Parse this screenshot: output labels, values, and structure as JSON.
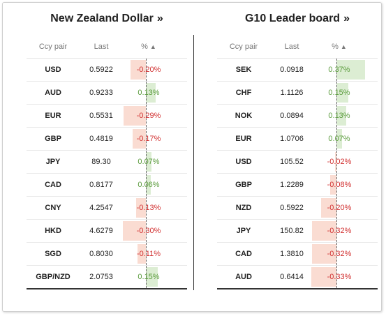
{
  "colors": {
    "positive": "#5a9b3c",
    "negative": "#d13030",
    "positive_bar": "#dcedd3",
    "negative_bar": "#fadcd2"
  },
  "left": {
    "title": "New Zealand Dollar",
    "title_suffix": "»",
    "headers": {
      "pair": "Ccy pair",
      "last": "Last",
      "pct": "%",
      "sort_icon": "▲"
    },
    "rows": [
      {
        "pair": "USD",
        "last": "0.5922",
        "pct": "-0.20%",
        "value": -0.2
      },
      {
        "pair": "AUD",
        "last": "0.9233",
        "pct": "0.13%",
        "value": 0.13
      },
      {
        "pair": "EUR",
        "last": "0.5531",
        "pct": "-0.29%",
        "value": -0.29
      },
      {
        "pair": "GBP",
        "last": "0.4819",
        "pct": "-0.17%",
        "value": -0.17
      },
      {
        "pair": "JPY",
        "last": "89.30",
        "pct": "0.07%",
        "value": 0.07
      },
      {
        "pair": "CAD",
        "last": "0.8177",
        "pct": "0.06%",
        "value": 0.06
      },
      {
        "pair": "CNY",
        "last": "4.2547",
        "pct": "-0.13%",
        "value": -0.13
      },
      {
        "pair": "HKD",
        "last": "4.6279",
        "pct": "-0.30%",
        "value": -0.3
      },
      {
        "pair": "SGD",
        "last": "0.8030",
        "pct": "-0.11%",
        "value": -0.11
      },
      {
        "pair": "GBP/NZD",
        "last": "2.0753",
        "pct": "0.15%",
        "value": 0.15
      }
    ]
  },
  "right": {
    "title": "G10 Leader board",
    "title_suffix": "»",
    "headers": {
      "pair": "Ccy pair",
      "last": "Last",
      "pct": "%",
      "sort_icon": "▲"
    },
    "rows": [
      {
        "pair": "SEK",
        "last": "0.0918",
        "pct": "0.37%",
        "value": 0.37
      },
      {
        "pair": "CHF",
        "last": "1.1126",
        "pct": "0.15%",
        "value": 0.15
      },
      {
        "pair": "NOK",
        "last": "0.0894",
        "pct": "0.13%",
        "value": 0.13
      },
      {
        "pair": "EUR",
        "last": "1.0706",
        "pct": "0.07%",
        "value": 0.07
      },
      {
        "pair": "USD",
        "last": "105.52",
        "pct": "-0.02%",
        "value": -0.02
      },
      {
        "pair": "GBP",
        "last": "1.2289",
        "pct": "-0.08%",
        "value": -0.08
      },
      {
        "pair": "NZD",
        "last": "0.5922",
        "pct": "-0.20%",
        "value": -0.2
      },
      {
        "pair": "JPY",
        "last": "150.82",
        "pct": "-0.32%",
        "value": -0.32
      },
      {
        "pair": "CAD",
        "last": "1.3810",
        "pct": "-0.32%",
        "value": -0.32
      },
      {
        "pair": "AUD",
        "last": "0.6414",
        "pct": "-0.33%",
        "value": -0.33
      }
    ]
  }
}
